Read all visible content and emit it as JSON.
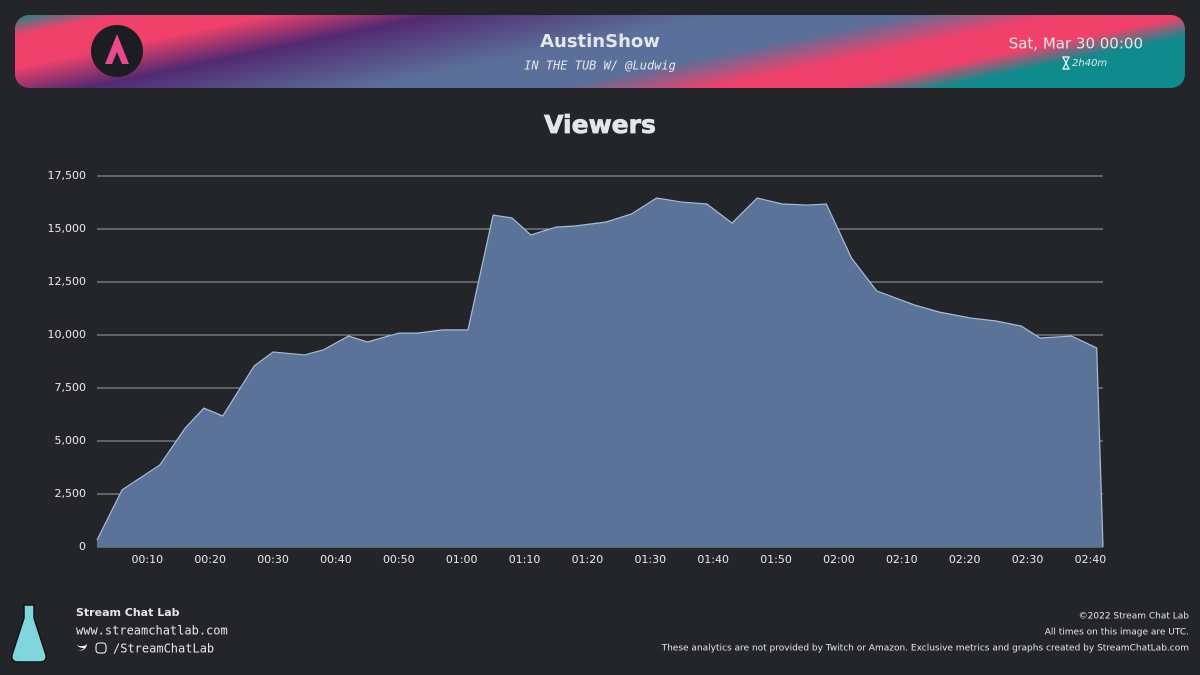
{
  "header": {
    "channel": "AustinShow",
    "stream_title": "IN THE TUB W/ @Ludwig",
    "date": "Sat, Mar 30 00:00",
    "duration": "2h40m"
  },
  "chart_data": {
    "type": "area",
    "title": "Viewers",
    "color": "#5b7399",
    "line_color": "#a9bcd8",
    "grid": true,
    "x": [
      2,
      6,
      12,
      16,
      19,
      22,
      27,
      30,
      35,
      38,
      42,
      45,
      50,
      53,
      57,
      61,
      65,
      68,
      71,
      75,
      78,
      83,
      87,
      91,
      95,
      99,
      103,
      107,
      111,
      115,
      118,
      122,
      126,
      132,
      136,
      141,
      145,
      149,
      152,
      157,
      161,
      162
    ],
    "values": [
      330,
      2700,
      3870,
      5600,
      6550,
      6180,
      8540,
      9200,
      9060,
      9300,
      9950,
      9670,
      10090,
      10090,
      10240,
      10240,
      15660,
      15520,
      14720,
      15090,
      15140,
      15330,
      15710,
      16460,
      16270,
      16180,
      15280,
      16460,
      16180,
      16130,
      16180,
      13630,
      12080,
      11420,
      11080,
      10800,
      10660,
      10420,
      9860,
      9950,
      9390,
      0
    ],
    "xlim": [
      2,
      162
    ],
    "xticks": [
      {
        "value": 10,
        "label": "00:10"
      },
      {
        "value": 20,
        "label": "00:20"
      },
      {
        "value": 30,
        "label": "00:30"
      },
      {
        "value": 40,
        "label": "00:40"
      },
      {
        "value": 50,
        "label": "00:50"
      },
      {
        "value": 60,
        "label": "01:00"
      },
      {
        "value": 70,
        "label": "01:10"
      },
      {
        "value": 80,
        "label": "01:20"
      },
      {
        "value": 90,
        "label": "01:30"
      },
      {
        "value": 100,
        "label": "01:40"
      },
      {
        "value": 110,
        "label": "01:50"
      },
      {
        "value": 120,
        "label": "02:00"
      },
      {
        "value": 130,
        "label": "02:10"
      },
      {
        "value": 140,
        "label": "02:20"
      },
      {
        "value": 150,
        "label": "02:30"
      },
      {
        "value": 160,
        "label": "02:40"
      }
    ],
    "ylim": [
      0,
      17500
    ],
    "yticks": [
      0,
      {
        "value": 2500,
        "label": "2,500"
      },
      {
        "value": 5000,
        "label": "5,000"
      },
      {
        "value": 7500,
        "label": "7,500"
      },
      {
        "value": 10000,
        "label": "10,000"
      },
      {
        "value": 12500,
        "label": "12,500"
      },
      {
        "value": 15000,
        "label": "15,000"
      },
      {
        "value": 17500,
        "label": "17,500"
      }
    ]
  },
  "footer": {
    "brand": "Stream Chat Lab",
    "website": "www.streamchatlab.com",
    "handle": "/StreamChatLab",
    "copyright": "©2022 Stream Chat Lab",
    "timezone_note": "All times on this image are UTC.",
    "disclaimer": "These analytics are not provided by Twitch or Amazon. Exclusive metrics and graphs created by StreamChatLab.com"
  }
}
